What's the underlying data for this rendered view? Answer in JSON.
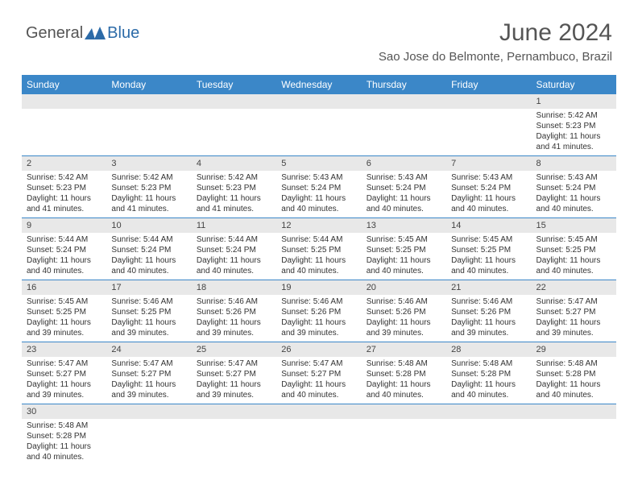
{
  "logo": {
    "part1": "General",
    "part2": "Blue"
  },
  "title": "June 2024",
  "location": "Sao Jose do Belmonte, Pernambuco, Brazil",
  "colors": {
    "header_bg": "#3b87c8",
    "header_text": "#ffffff",
    "daynum_bg": "#e8e8e8",
    "row_border": "#3b87c8",
    "text": "#333333",
    "title_text": "#555555",
    "logo_gray": "#555555",
    "logo_blue": "#2c6ba8",
    "page_bg": "#ffffff"
  },
  "typography": {
    "title_fontsize": 30,
    "location_fontsize": 15,
    "header_fontsize": 12,
    "daynum_fontsize": 11,
    "body_fontsize": 10
  },
  "weekdays": [
    "Sunday",
    "Monday",
    "Tuesday",
    "Wednesday",
    "Thursday",
    "Friday",
    "Saturday"
  ],
  "weeks": [
    [
      {
        "empty": true
      },
      {
        "empty": true
      },
      {
        "empty": true
      },
      {
        "empty": true
      },
      {
        "empty": true
      },
      {
        "empty": true
      },
      {
        "day": "1",
        "sunrise": "Sunrise: 5:42 AM",
        "sunset": "Sunset: 5:23 PM",
        "daylight": "Daylight: 11 hours and 41 minutes."
      }
    ],
    [
      {
        "day": "2",
        "sunrise": "Sunrise: 5:42 AM",
        "sunset": "Sunset: 5:23 PM",
        "daylight": "Daylight: 11 hours and 41 minutes."
      },
      {
        "day": "3",
        "sunrise": "Sunrise: 5:42 AM",
        "sunset": "Sunset: 5:23 PM",
        "daylight": "Daylight: 11 hours and 41 minutes."
      },
      {
        "day": "4",
        "sunrise": "Sunrise: 5:42 AM",
        "sunset": "Sunset: 5:23 PM",
        "daylight": "Daylight: 11 hours and 41 minutes."
      },
      {
        "day": "5",
        "sunrise": "Sunrise: 5:43 AM",
        "sunset": "Sunset: 5:24 PM",
        "daylight": "Daylight: 11 hours and 40 minutes."
      },
      {
        "day": "6",
        "sunrise": "Sunrise: 5:43 AM",
        "sunset": "Sunset: 5:24 PM",
        "daylight": "Daylight: 11 hours and 40 minutes."
      },
      {
        "day": "7",
        "sunrise": "Sunrise: 5:43 AM",
        "sunset": "Sunset: 5:24 PM",
        "daylight": "Daylight: 11 hours and 40 minutes."
      },
      {
        "day": "8",
        "sunrise": "Sunrise: 5:43 AM",
        "sunset": "Sunset: 5:24 PM",
        "daylight": "Daylight: 11 hours and 40 minutes."
      }
    ],
    [
      {
        "day": "9",
        "sunrise": "Sunrise: 5:44 AM",
        "sunset": "Sunset: 5:24 PM",
        "daylight": "Daylight: 11 hours and 40 minutes."
      },
      {
        "day": "10",
        "sunrise": "Sunrise: 5:44 AM",
        "sunset": "Sunset: 5:24 PM",
        "daylight": "Daylight: 11 hours and 40 minutes."
      },
      {
        "day": "11",
        "sunrise": "Sunrise: 5:44 AM",
        "sunset": "Sunset: 5:24 PM",
        "daylight": "Daylight: 11 hours and 40 minutes."
      },
      {
        "day": "12",
        "sunrise": "Sunrise: 5:44 AM",
        "sunset": "Sunset: 5:25 PM",
        "daylight": "Daylight: 11 hours and 40 minutes."
      },
      {
        "day": "13",
        "sunrise": "Sunrise: 5:45 AM",
        "sunset": "Sunset: 5:25 PM",
        "daylight": "Daylight: 11 hours and 40 minutes."
      },
      {
        "day": "14",
        "sunrise": "Sunrise: 5:45 AM",
        "sunset": "Sunset: 5:25 PM",
        "daylight": "Daylight: 11 hours and 40 minutes."
      },
      {
        "day": "15",
        "sunrise": "Sunrise: 5:45 AM",
        "sunset": "Sunset: 5:25 PM",
        "daylight": "Daylight: 11 hours and 40 minutes."
      }
    ],
    [
      {
        "day": "16",
        "sunrise": "Sunrise: 5:45 AM",
        "sunset": "Sunset: 5:25 PM",
        "daylight": "Daylight: 11 hours and 39 minutes."
      },
      {
        "day": "17",
        "sunrise": "Sunrise: 5:46 AM",
        "sunset": "Sunset: 5:25 PM",
        "daylight": "Daylight: 11 hours and 39 minutes."
      },
      {
        "day": "18",
        "sunrise": "Sunrise: 5:46 AM",
        "sunset": "Sunset: 5:26 PM",
        "daylight": "Daylight: 11 hours and 39 minutes."
      },
      {
        "day": "19",
        "sunrise": "Sunrise: 5:46 AM",
        "sunset": "Sunset: 5:26 PM",
        "daylight": "Daylight: 11 hours and 39 minutes."
      },
      {
        "day": "20",
        "sunrise": "Sunrise: 5:46 AM",
        "sunset": "Sunset: 5:26 PM",
        "daylight": "Daylight: 11 hours and 39 minutes."
      },
      {
        "day": "21",
        "sunrise": "Sunrise: 5:46 AM",
        "sunset": "Sunset: 5:26 PM",
        "daylight": "Daylight: 11 hours and 39 minutes."
      },
      {
        "day": "22",
        "sunrise": "Sunrise: 5:47 AM",
        "sunset": "Sunset: 5:27 PM",
        "daylight": "Daylight: 11 hours and 39 minutes."
      }
    ],
    [
      {
        "day": "23",
        "sunrise": "Sunrise: 5:47 AM",
        "sunset": "Sunset: 5:27 PM",
        "daylight": "Daylight: 11 hours and 39 minutes."
      },
      {
        "day": "24",
        "sunrise": "Sunrise: 5:47 AM",
        "sunset": "Sunset: 5:27 PM",
        "daylight": "Daylight: 11 hours and 39 minutes."
      },
      {
        "day": "25",
        "sunrise": "Sunrise: 5:47 AM",
        "sunset": "Sunset: 5:27 PM",
        "daylight": "Daylight: 11 hours and 39 minutes."
      },
      {
        "day": "26",
        "sunrise": "Sunrise: 5:47 AM",
        "sunset": "Sunset: 5:27 PM",
        "daylight": "Daylight: 11 hours and 40 minutes."
      },
      {
        "day": "27",
        "sunrise": "Sunrise: 5:48 AM",
        "sunset": "Sunset: 5:28 PM",
        "daylight": "Daylight: 11 hours and 40 minutes."
      },
      {
        "day": "28",
        "sunrise": "Sunrise: 5:48 AM",
        "sunset": "Sunset: 5:28 PM",
        "daylight": "Daylight: 11 hours and 40 minutes."
      },
      {
        "day": "29",
        "sunrise": "Sunrise: 5:48 AM",
        "sunset": "Sunset: 5:28 PM",
        "daylight": "Daylight: 11 hours and 40 minutes."
      }
    ],
    [
      {
        "day": "30",
        "sunrise": "Sunrise: 5:48 AM",
        "sunset": "Sunset: 5:28 PM",
        "daylight": "Daylight: 11 hours and 40 minutes."
      },
      {
        "empty": true
      },
      {
        "empty": true
      },
      {
        "empty": true
      },
      {
        "empty": true
      },
      {
        "empty": true
      },
      {
        "empty": true
      }
    ]
  ]
}
